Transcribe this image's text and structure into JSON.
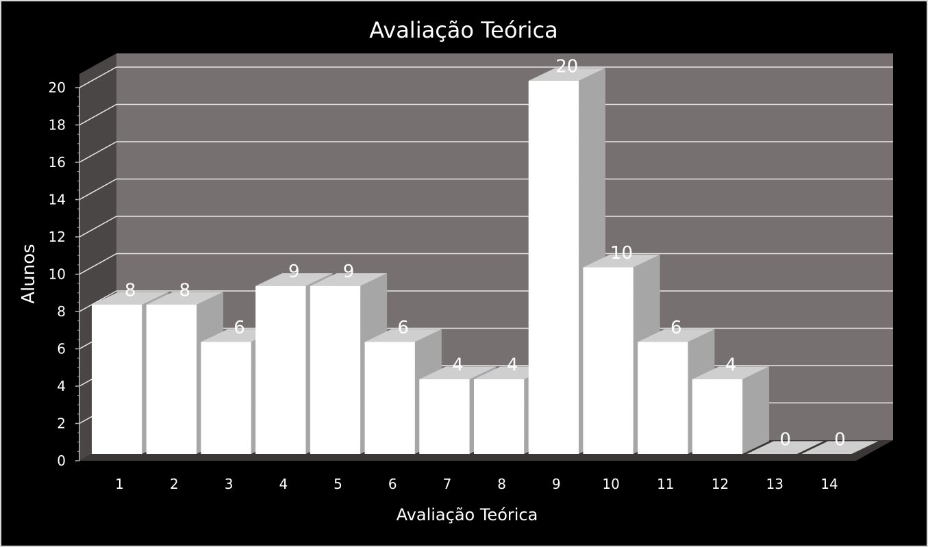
{
  "chart_data": {
    "type": "bar",
    "title": "Avaliação Teórica",
    "xlabel": "Avaliação Teórica",
    "ylabel": "Alunos",
    "categories": [
      "1",
      "2",
      "3",
      "4",
      "5",
      "6",
      "7",
      "8",
      "9",
      "10",
      "11",
      "12",
      "13",
      "14"
    ],
    "values": [
      8,
      8,
      6,
      9,
      9,
      6,
      4,
      4,
      20,
      10,
      6,
      4,
      0,
      0
    ],
    "ylim": [
      0,
      20
    ],
    "yticks": [
      0,
      2,
      4,
      6,
      8,
      10,
      12,
      14,
      16,
      18,
      20
    ],
    "grid": true,
    "legend": "none",
    "style": "3d-column"
  },
  "colors": {
    "background": "#000000",
    "plot_back_wall": "#767170",
    "plot_side_wall": "#4a4645",
    "floor": "#3a3736",
    "bar_front": "#ffffff",
    "bar_side": "#a6a6a6",
    "bar_top": "#cfcfcf",
    "text": "#ffffff",
    "gridline": "#e8e8e8"
  }
}
